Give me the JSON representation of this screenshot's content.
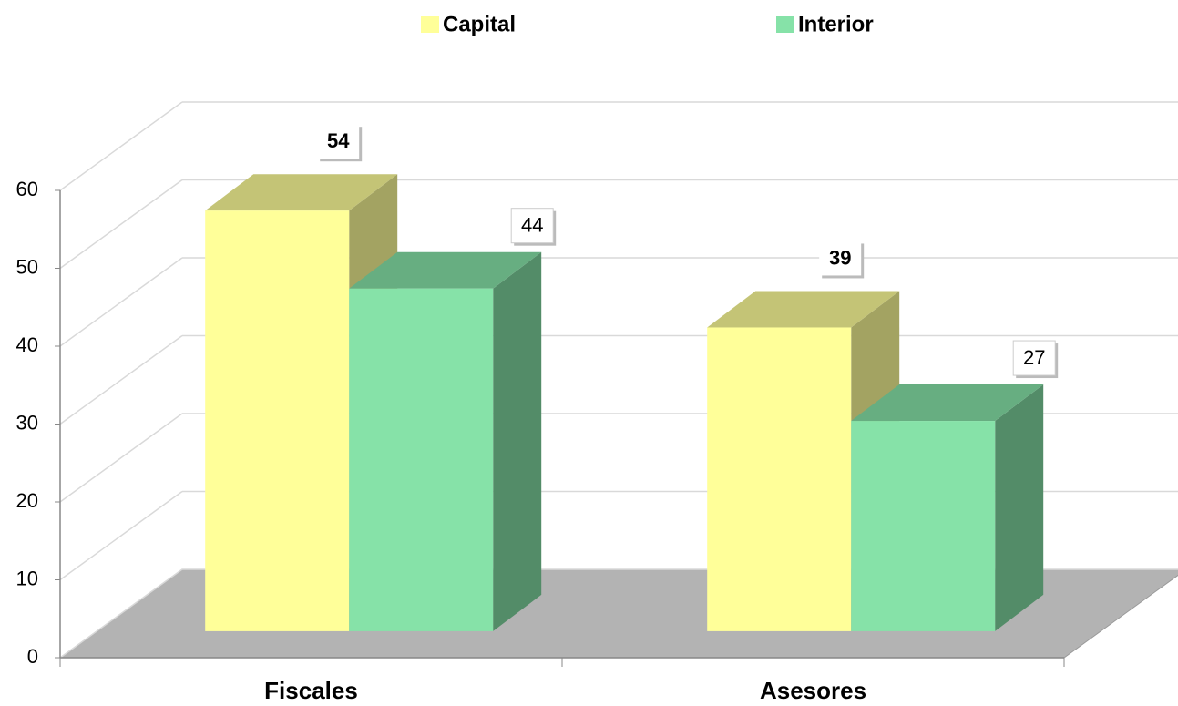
{
  "chart_data": {
    "type": "bar3d",
    "categories": [
      "Fiscales",
      "Asesores"
    ],
    "series": [
      {
        "name": "Capital",
        "color": "#ffff99",
        "values": [
          54,
          39
        ]
      },
      {
        "name": "Interior",
        "color": "#86e2a8",
        "values": [
          44,
          27
        ]
      }
    ],
    "ylim": [
      0,
      60
    ],
    "yticks": [
      0,
      10,
      20,
      30,
      40,
      50,
      60
    ],
    "grid": true,
    "legend": "top"
  }
}
